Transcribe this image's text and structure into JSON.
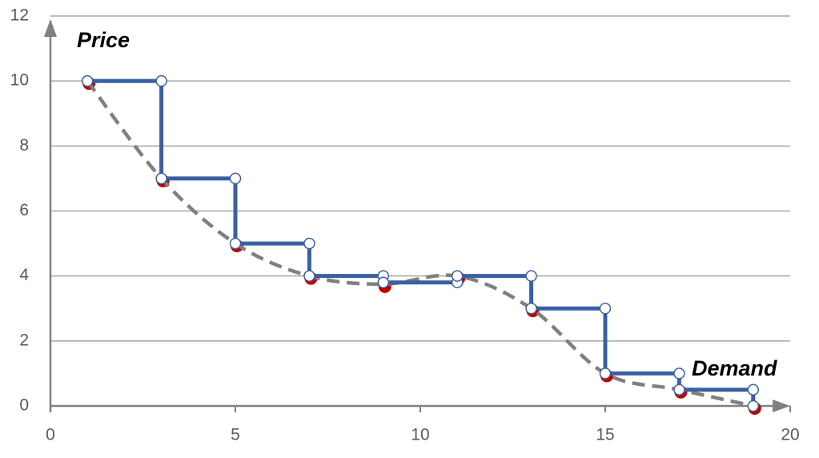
{
  "chart_data": {
    "type": "line",
    "annotations": [
      "Price",
      "Demand"
    ],
    "xlim": [
      0,
      20
    ],
    "xticks": [
      0,
      5,
      10,
      15,
      20
    ],
    "ylim": [
      0,
      12
    ],
    "yticks": [
      0,
      2,
      4,
      6,
      8,
      10,
      12
    ],
    "grid": true,
    "series": [
      {
        "style": "smooth-dashed",
        "color": "#808080",
        "marker_color": "#c00000",
        "x": [
          1,
          3,
          5,
          7,
          9,
          11,
          13,
          15,
          17,
          19
        ],
        "values": [
          10,
          7,
          5,
          4,
          3.75,
          4,
          3,
          1,
          0.5,
          0
        ]
      },
      {
        "style": "solid",
        "color": "#3b5fa3",
        "marker_color": "#ffffff",
        "x": [
          1,
          3,
          3,
          5,
          5,
          7,
          7,
          9,
          9,
          11,
          11,
          13,
          13,
          15,
          15,
          17,
          17,
          19,
          19
        ],
        "values": [
          10,
          10,
          7,
          7,
          5,
          5,
          4,
          4,
          3.8,
          3.8,
          4,
          4,
          3,
          3,
          1,
          1,
          0.5,
          0.5,
          0
        ]
      }
    ]
  }
}
